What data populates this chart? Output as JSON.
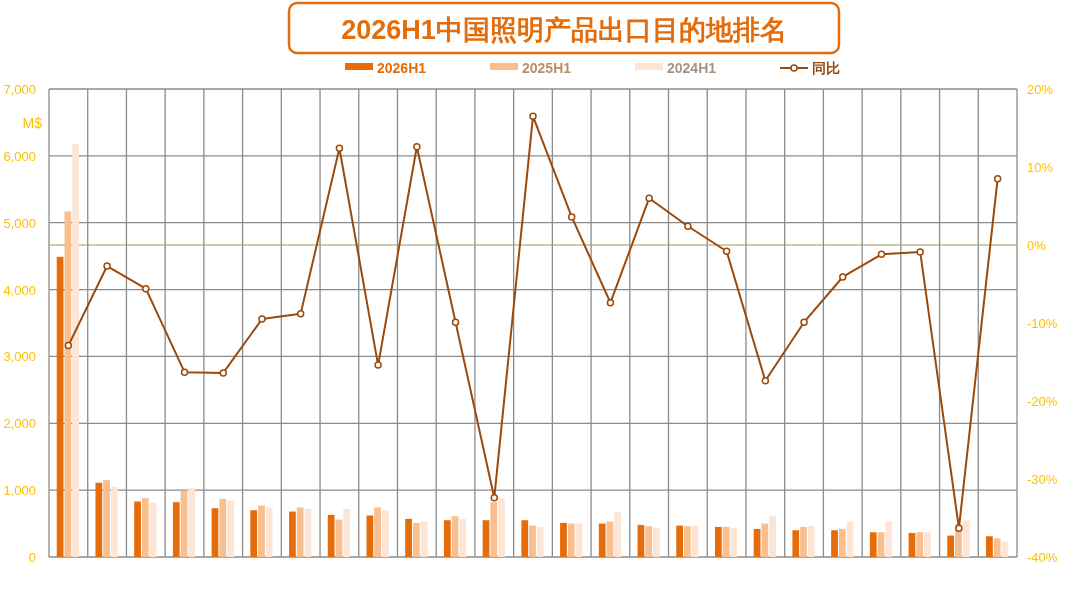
{
  "chart_data": {
    "type": "bar",
    "title": "2026H1中国照明产品出口目的地排名",
    "ylabel": "M$",
    "categories": [
      null,
      null,
      null,
      null,
      null,
      null,
      null,
      null,
      null,
      null,
      null,
      null,
      null,
      null,
      null,
      null,
      null,
      null,
      null,
      null,
      null,
      null,
      null,
      null,
      null
    ],
    "series": [
      {
        "name": "2026H1",
        "color": "#e46c0a",
        "values": [
          4490,
          1110,
          830,
          820,
          730,
          700,
          680,
          630,
          620,
          570,
          550,
          550,
          550,
          510,
          500,
          480,
          470,
          450,
          420,
          400,
          400,
          370,
          360,
          320,
          310
        ]
      },
      {
        "name": "2025H1",
        "color": "#f9bf8f",
        "values": [
          5170,
          1150,
          880,
          990,
          870,
          770,
          740,
          560,
          740,
          510,
          610,
          820,
          470,
          500,
          530,
          460,
          460,
          450,
          500,
          450,
          420,
          370,
          370,
          490,
          280
        ]
      },
      {
        "name": "2024H1",
        "color": "#fde5d6",
        "values": [
          6180,
          1050,
          810,
          1030,
          850,
          740,
          720,
          720,
          700,
          530,
          570,
          880,
          450,
          500,
          670,
          440,
          470,
          430,
          610,
          460,
          530,
          530,
          370,
          540,
          230
        ]
      },
      {
        "name": "同比",
        "type": "line",
        "axis": "y2",
        "color": "#9c4a0b",
        "marker": "circle",
        "values": [
          -12.9,
          -2.7,
          -5.6,
          -16.3,
          -16.4,
          -9.5,
          -8.8,
          12.4,
          -15.4,
          12.6,
          -9.9,
          -32.4,
          16.5,
          3.6,
          -7.4,
          6.0,
          2.4,
          -0.8,
          -17.4,
          -9.9,
          -4.1,
          -1.2,
          -0.9,
          -36.3,
          8.5
        ]
      }
    ],
    "ylim": [
      0,
      7000
    ],
    "yticks": [
      0,
      {
        "value": 1000,
        "label": "1,000"
      },
      {
        "value": 2000,
        "label": "2,000"
      },
      {
        "value": 3000,
        "label": "3,000"
      },
      {
        "value": 4000,
        "label": "4,000"
      },
      {
        "value": 5000,
        "label": "5,000"
      },
      {
        "value": 6000,
        "label": "6,000"
      },
      {
        "value": 7000,
        "label": "7,000"
      }
    ],
    "y2lim": [
      -40,
      20
    ],
    "y2ticks": [
      {
        "value": -40,
        "label": "-40%"
      },
      {
        "value": -30,
        "label": "-30%"
      },
      {
        "value": -20,
        "label": "-20%"
      },
      {
        "value": -10,
        "label": "-10%"
      },
      {
        "value": 0,
        "label": "0%"
      },
      {
        "value": 10,
        "label": "10%"
      },
      {
        "value": 20,
        "label": "20%"
      }
    ],
    "ref_lines": [
      {
        "axis": "y2",
        "value": 0,
        "color": "#a09a5a"
      }
    ],
    "grid": true,
    "legend": "top"
  }
}
